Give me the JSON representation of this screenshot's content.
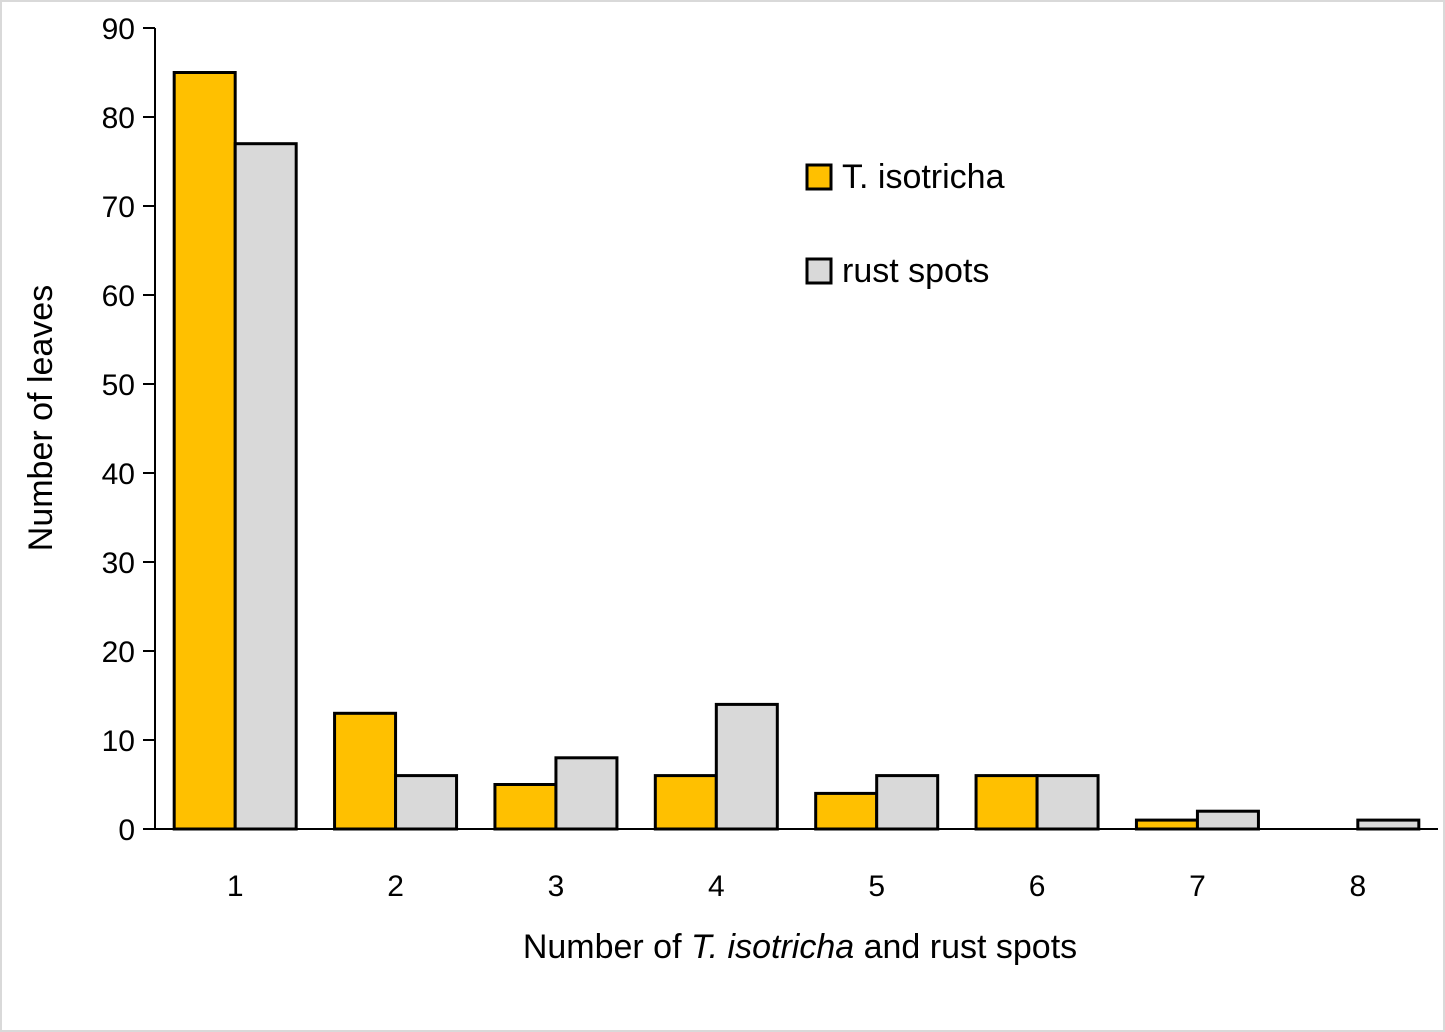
{
  "chart_data": {
    "type": "bar",
    "categories": [
      "1",
      "2",
      "3",
      "4",
      "5",
      "6",
      "7",
      "8"
    ],
    "series": [
      {
        "name": "T. isotricha",
        "values": [
          85,
          13,
          5,
          6,
          4,
          6,
          1,
          0
        ],
        "color": "#FFC000"
      },
      {
        "name": "rust spots",
        "values": [
          77,
          6,
          8,
          14,
          6,
          6,
          2,
          1
        ],
        "color": "#D9D9D9"
      }
    ],
    "ylabel": "Number of leaves",
    "xlabel_parts": [
      {
        "text": "Number of ",
        "italic": false
      },
      {
        "text": "T. isotricha",
        "italic": true
      },
      {
        "text": " and rust spots",
        "italic": false
      }
    ],
    "ylim": [
      0,
      90
    ],
    "yticks": [
      0,
      10,
      20,
      30,
      40,
      50,
      60,
      70,
      80,
      90
    ],
    "grid": false,
    "legend_position": "top-right",
    "bar_outline_color": "#000000"
  }
}
